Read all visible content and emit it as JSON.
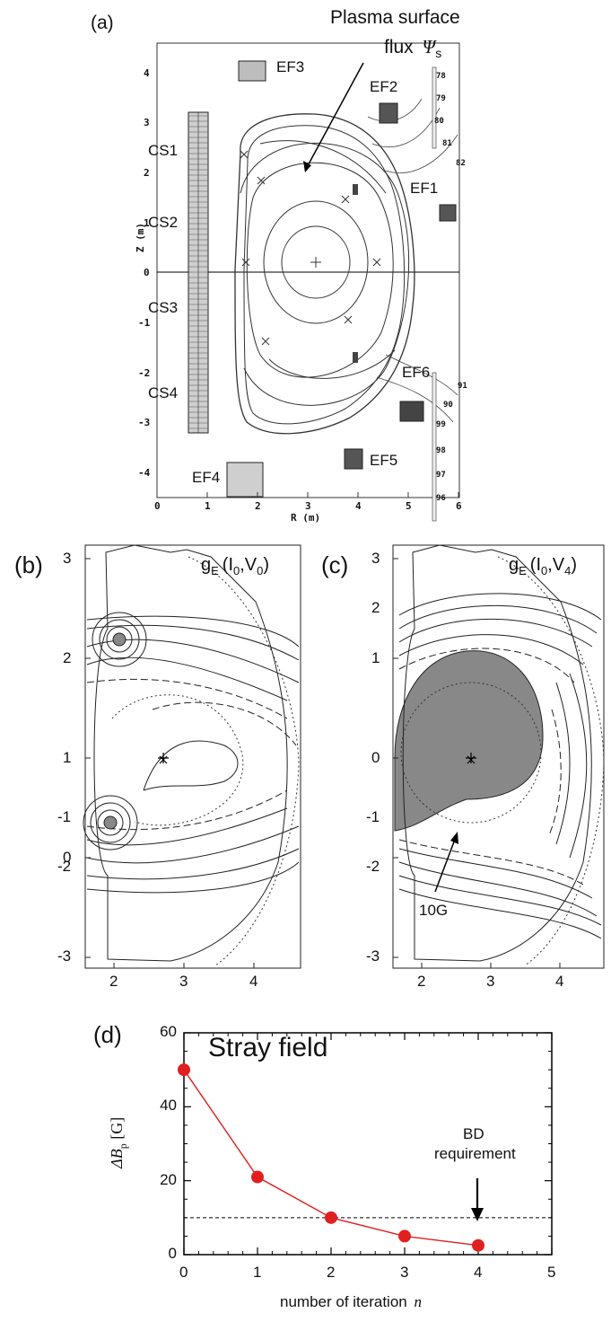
{
  "panel_a": {
    "label": "(a)",
    "annotation_line1": "Plasma surface",
    "annotation_line2": "flux",
    "annotation_symbol": "Ψ",
    "annotation_sub": "s",
    "coils": [
      "EF3",
      "EF2",
      "EF1",
      "CS1",
      "CS2",
      "CS3",
      "CS4",
      "EF6",
      "EF5",
      "EF4"
    ],
    "x_axis_label": "R (m)",
    "y_axis_label": "Z (m)",
    "x_ticks": [
      "0",
      "1",
      "2",
      "3",
      "4",
      "5",
      "6"
    ],
    "y_ticks": [
      "4",
      "3",
      "2",
      "1",
      "0",
      "-1",
      "-2",
      "-3",
      "-4"
    ],
    "coil_numbers_right": [
      "78",
      "79",
      "80",
      "81",
      "82"
    ],
    "coil_numbers_lower_right": [
      "91",
      "90",
      "99",
      "98",
      "97",
      "96"
    ]
  },
  "panel_b": {
    "label": "(b)",
    "title": "g",
    "title_sub": "E",
    "title_args": "(I",
    "arg1_sub": "0",
    "arg_sep": ",V",
    "arg2_sub": "0",
    "close": ")",
    "x_ticks": [
      "2",
      "3",
      "4"
    ],
    "y_ticks": [
      "3",
      "2",
      "1",
      "0",
      "-1",
      "-2",
      "-3"
    ]
  },
  "panel_c": {
    "label": "(c)",
    "title": "g",
    "title_sub": "E",
    "title_args": "(I",
    "arg1_sub": "0",
    "arg_sep": ",V",
    "arg2_sub": "4",
    "close": ")",
    "annotation": "10G",
    "x_ticks": [
      "2",
      "3",
      "4"
    ],
    "y_ticks": [
      "3",
      "2",
      "1",
      "0",
      "-1",
      "-2",
      "-3"
    ]
  },
  "panel_d": {
    "label": "(d)",
    "title": "Stray field",
    "ylabel": "ΔB",
    "ylabel_sub": "p",
    "ylabel_unit": " [G]",
    "xlabel": "number of iteration",
    "xlabel_var": "n",
    "annotation_line1": "BD",
    "annotation_line2": "requirement"
  },
  "chart_data": {
    "type": "line",
    "title": "Stray field",
    "xlabel": "number of iteration n",
    "ylabel": "ΔBp [G]",
    "x": [
      0,
      1,
      2,
      3,
      4
    ],
    "series": [
      {
        "values": [
          50,
          21,
          10,
          5,
          2.5
        ],
        "color": "#e02020"
      }
    ],
    "reference_line": {
      "y": 10,
      "style": "dashed"
    },
    "xlim": [
      0,
      5
    ],
    "ylim": [
      0,
      60
    ],
    "x_ticks": [
      0,
      1,
      2,
      3,
      4,
      5
    ],
    "y_ticks": [
      0,
      20,
      40,
      60
    ],
    "grid": false
  }
}
